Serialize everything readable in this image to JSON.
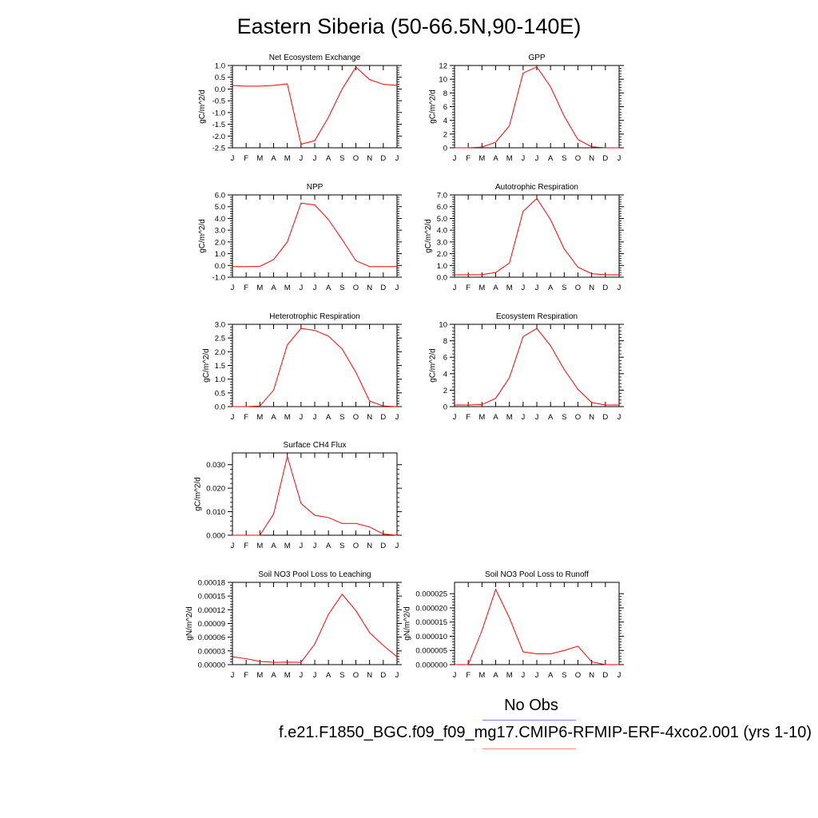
{
  "title": "Eastern Siberia (50-66.5N,90-140E)",
  "legend": {
    "obs_label": "No Obs",
    "obs_color": "#8080ff",
    "case_label": "f.e21.F1850_BGC.f09_f09_mg17.CMIP6-RFMIP-ERF-4xco2.001 (yrs 1-10)",
    "case_color": "#ff8080"
  },
  "line_color": "#ff0000",
  "chart_data": [
    {
      "type": "line",
      "title": "Net Ecosystem Exchange",
      "ylabel": "gC/m^2/d",
      "categories": [
        "J",
        "F",
        "M",
        "A",
        "M",
        "J",
        "J",
        "A",
        "S",
        "O",
        "N",
        "D",
        "J"
      ],
      "ylim": [
        -2.5,
        1.0
      ],
      "yticks": [
        -2.5,
        -2.0,
        -1.5,
        -1.0,
        -0.5,
        0.0,
        0.5,
        1.0
      ],
      "yticklabels": [
        "-2.5",
        "-2.0",
        "-1.5",
        "-1.0",
        "-0.5",
        "0.0",
        "0.5",
        "1.0"
      ],
      "values": [
        0.15,
        0.12,
        0.12,
        0.15,
        0.22,
        -2.35,
        -2.2,
        -1.2,
        0.0,
        0.93,
        0.4,
        0.2,
        0.15
      ]
    },
    {
      "type": "line",
      "title": "GPP",
      "ylabel": "gC/m^2/d",
      "categories": [
        "J",
        "F",
        "M",
        "A",
        "M",
        "J",
        "J",
        "A",
        "S",
        "O",
        "N",
        "D",
        "J"
      ],
      "ylim": [
        0,
        12
      ],
      "yticks": [
        0,
        2,
        4,
        6,
        8,
        10,
        12
      ],
      "yticklabels": [
        "0",
        "2",
        "4",
        "6",
        "8",
        "10",
        "12"
      ],
      "values": [
        0.0,
        0.0,
        0.1,
        0.8,
        3.2,
        10.9,
        11.8,
        8.9,
        4.6,
        1.2,
        0.15,
        0.0,
        0.0
      ]
    },
    {
      "type": "line",
      "title": "NPP",
      "ylabel": "gC/m^2/d",
      "categories": [
        "J",
        "F",
        "M",
        "A",
        "M",
        "J",
        "J",
        "A",
        "S",
        "O",
        "N",
        "D",
        "J"
      ],
      "ylim": [
        -1.0,
        6.0
      ],
      "yticks": [
        -1.0,
        0.0,
        1.0,
        2.0,
        3.0,
        4.0,
        5.0,
        6.0
      ],
      "yticklabels": [
        "-1.0",
        "0.0",
        "1.0",
        "2.0",
        "3.0",
        "4.0",
        "5.0",
        "6.0"
      ],
      "values": [
        -0.1,
        -0.1,
        -0.08,
        0.5,
        2.0,
        5.3,
        5.15,
        3.9,
        2.2,
        0.4,
        -0.1,
        -0.1,
        -0.1
      ]
    },
    {
      "type": "line",
      "title": "Autotrophic Respiration",
      "ylabel": "gC/m^2/d",
      "categories": [
        "J",
        "F",
        "M",
        "A",
        "M",
        "J",
        "J",
        "A",
        "S",
        "O",
        "N",
        "D",
        "J"
      ],
      "ylim": [
        0,
        7.0
      ],
      "yticks": [
        0,
        1,
        2,
        3,
        4,
        5,
        6,
        7
      ],
      "yticklabels": [
        "0.0",
        "1.0",
        "2.0",
        "3.0",
        "4.0",
        "5.0",
        "6.0",
        "7.0"
      ],
      "values": [
        0.2,
        0.2,
        0.22,
        0.4,
        1.2,
        5.6,
        6.7,
        4.9,
        2.4,
        0.85,
        0.3,
        0.2,
        0.2
      ]
    },
    {
      "type": "line",
      "title": "Heterotrophic Respiration",
      "ylabel": "gC/m^2/d",
      "categories": [
        "J",
        "F",
        "M",
        "A",
        "M",
        "J",
        "J",
        "A",
        "S",
        "O",
        "N",
        "D",
        "J"
      ],
      "ylim": [
        0,
        3.0
      ],
      "yticks": [
        0,
        0.5,
        1.0,
        1.5,
        2.0,
        2.5,
        3.0
      ],
      "yticklabels": [
        "0.0",
        "0.5",
        "1.0",
        "1.5",
        "2.0",
        "2.5",
        "3.0"
      ],
      "values": [
        0.0,
        0.0,
        0.02,
        0.6,
        2.25,
        2.85,
        2.78,
        2.57,
        2.1,
        1.25,
        0.2,
        0.02,
        0.0
      ]
    },
    {
      "type": "line",
      "title": "Ecosystem Respiration",
      "ylabel": "gC/m^2/d",
      "categories": [
        "J",
        "F",
        "M",
        "A",
        "M",
        "J",
        "J",
        "A",
        "S",
        "O",
        "N",
        "D",
        "J"
      ],
      "ylim": [
        0,
        10
      ],
      "yticks": [
        0,
        2,
        4,
        6,
        8,
        10
      ],
      "yticklabels": [
        "0",
        "2",
        "4",
        "6",
        "8",
        "10"
      ],
      "values": [
        0.2,
        0.2,
        0.25,
        1.0,
        3.5,
        8.5,
        9.5,
        7.4,
        4.5,
        2.1,
        0.5,
        0.2,
        0.2
      ]
    },
    {
      "type": "line",
      "title": "Surface CH4 Flux",
      "ylabel": "gC/m^2/d",
      "categories": [
        "J",
        "F",
        "M",
        "A",
        "M",
        "J",
        "J",
        "A",
        "S",
        "O",
        "N",
        "D",
        "J"
      ],
      "ylim": [
        0,
        0.035
      ],
      "yticks": [
        0.0,
        0.01,
        0.02,
        0.03
      ],
      "yticklabels": [
        "0.000",
        "0.010",
        "0.020",
        "0.030"
      ],
      "values": [
        0.0,
        0.0,
        0.0,
        0.009,
        0.0335,
        0.0135,
        0.0085,
        0.0075,
        0.005,
        0.005,
        0.0035,
        0.0005,
        0.0
      ]
    },
    {
      "type": "line",
      "title": "Soil NO3 Pool Loss to Leaching",
      "ylabel": "gN/m^2/d",
      "categories": [
        "J",
        "F",
        "M",
        "A",
        "M",
        "J",
        "J",
        "A",
        "S",
        "O",
        "N",
        "D",
        "J"
      ],
      "ylim": [
        0,
        0.00018
      ],
      "yticks": [
        0,
        3e-05,
        6e-05,
        9e-05,
        0.00012,
        0.00015,
        0.00018
      ],
      "yticklabels": [
        "0.00000",
        "0.00003",
        "0.00006",
        "0.00009",
        "0.00012",
        "0.00015",
        "0.00018"
      ],
      "values": [
        1.7e-05,
        1.3e-05,
        7e-06,
        5e-06,
        5.5e-06,
        5e-06,
        4.5e-05,
        0.00011,
        0.000154,
        0.000118,
        7e-05,
        4.2e-05,
        1.7e-05
      ]
    },
    {
      "type": "line",
      "title": "Soil NO3 Pool Loss to Runoff",
      "ylabel": "gN/m^2/d",
      "categories": [
        "J",
        "F",
        "M",
        "A",
        "M",
        "J",
        "J",
        "A",
        "S",
        "O",
        "N",
        "D",
        "J"
      ],
      "ylim": [
        0,
        2.9e-05
      ],
      "yticks": [
        0,
        5e-06,
        1e-05,
        1.5e-05,
        2e-05,
        2.5e-05
      ],
      "yticklabels": [
        "0.000000",
        "0.000005",
        "0.000010",
        "0.000015",
        "0.000020",
        "0.000025"
      ],
      "values": [
        0.0,
        0.0,
        1.2e-05,
        2.65e-05,
        1.65e-05,
        4.5e-06,
        3.8e-06,
        3.8e-06,
        5e-06,
        6.5e-06,
        1e-06,
        0.0,
        0.0
      ]
    }
  ]
}
